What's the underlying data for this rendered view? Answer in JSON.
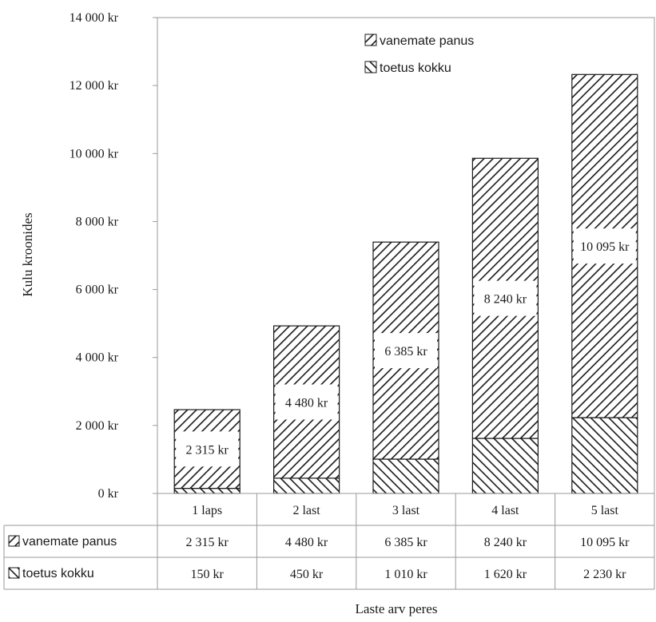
{
  "chart_data": {
    "type": "bar",
    "stacked": true,
    "categories": [
      "1 laps",
      "2 last",
      "3 last",
      "4 last",
      "5 last"
    ],
    "series": [
      {
        "name": "toetus kokku",
        "values": [
          150,
          450,
          1010,
          1620,
          2230
        ],
        "pattern": "hatch-backslash"
      },
      {
        "name": "vanemate panus",
        "values": [
          2315,
          4480,
          6385,
          8240,
          10095
        ],
        "pattern": "hatch-slash"
      }
    ],
    "data_labels": {
      "vanemate panus": [
        "2 315 kr",
        "4 480 kr",
        "6 385 kr",
        "8 240 kr",
        "10 095 kr"
      ]
    },
    "ylabel": "Kulu kroonides",
    "xlabel": "Laste arv peres",
    "ylim": [
      0,
      14000
    ],
    "yticks": [
      0,
      2000,
      4000,
      6000,
      8000,
      10000,
      12000,
      14000
    ],
    "ytick_labels": [
      "0 kr",
      "2 000 kr",
      "4 000 kr",
      "6 000 kr",
      "8 000 kr",
      "10 000 kr",
      "12 000 kr",
      "14 000 kr"
    ],
    "grid": false,
    "legend": {
      "placement": "top-center",
      "entries": [
        "vanemate panus",
        "toetus kokku"
      ]
    },
    "data_table": {
      "rows": [
        {
          "series": "vanemate panus",
          "cells": [
            "2 315 kr",
            "4 480 kr",
            "6 385 kr",
            "8 240 kr",
            "10 095 kr"
          ]
        },
        {
          "series": "toetus kokku",
          "cells": [
            "150 kr",
            "450 kr",
            "1 010 kr",
            "1 620 kr",
            "2 230 kr"
          ]
        }
      ]
    },
    "colors": {
      "ink": "#1a1a1a",
      "background": "#ffffff",
      "label_box": "#ffffff"
    }
  }
}
